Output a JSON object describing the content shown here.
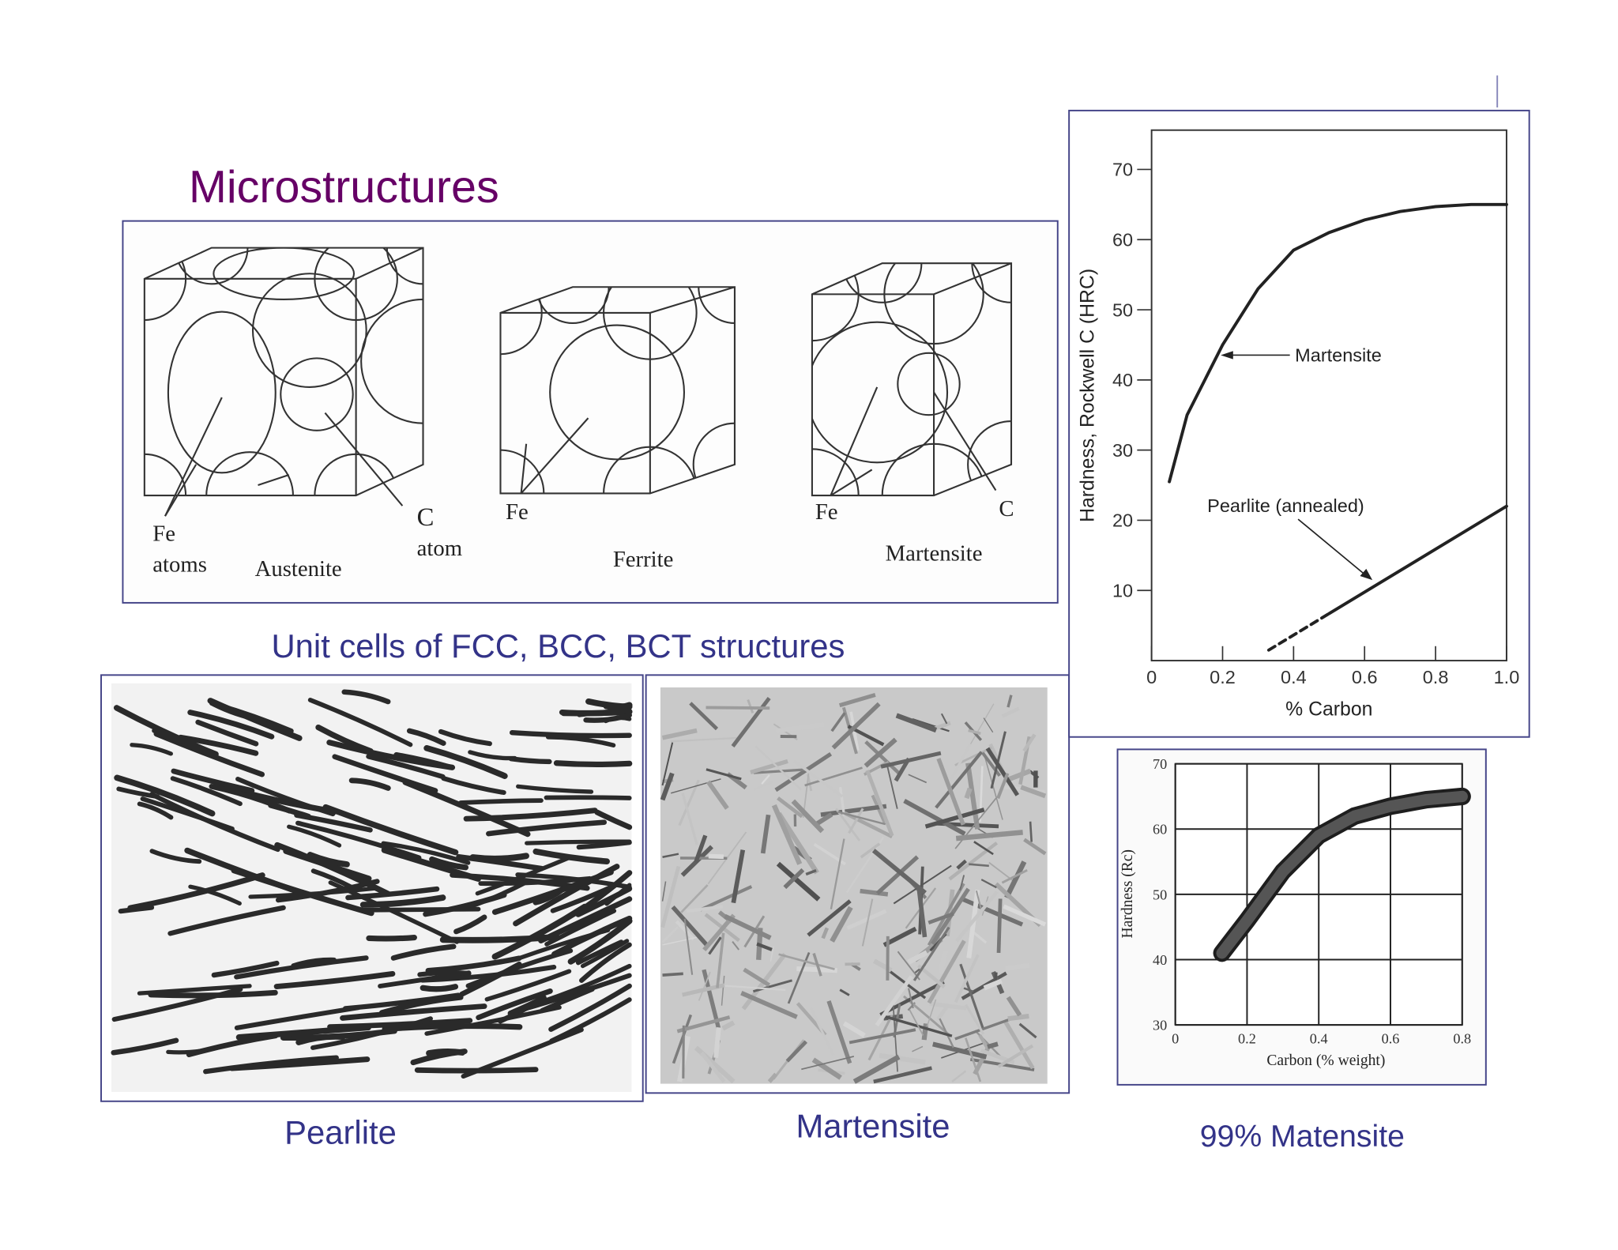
{
  "title": "Microstructures",
  "diagram": {
    "labels": [
      "Fe",
      "atoms",
      "Austenite",
      "C",
      "atom",
      "Fe",
      "Ferrite",
      "Fe",
      "C",
      "Martensite"
    ]
  },
  "captions": [
    "Unit cells of FCC, BCC, BCT structures",
    "Pearlite",
    "Martensite",
    "99% Matensite"
  ],
  "chart_data": [
    {
      "type": "line",
      "x_label": "% Carbon",
      "y_label": "Hardness, Rockwell C (HRC)",
      "xlim": [
        0,
        1
      ],
      "ylim": [
        0,
        75.6
      ],
      "xticks": [
        0,
        0.2,
        0.4,
        0.6,
        0.8,
        {
          "value": 1,
          "label": "1.0"
        }
      ],
      "yticks": [
        10,
        20,
        30,
        40,
        50,
        60,
        70
      ],
      "series": [
        {
          "name": "Martensite",
          "color": "#222222",
          "line_styles": [
            "solid"
          ],
          "x": [
            0.05,
            0.1,
            0.2,
            0.3,
            0.4,
            0.5,
            0.6,
            0.7,
            0.8,
            0.9,
            1.0
          ],
          "values": [
            25.5,
            35,
            45,
            53,
            58.5,
            61,
            62.8,
            64,
            64.7,
            65,
            65
          ]
        },
        {
          "name": "Pearlite (annealed)",
          "color": "#222222",
          "line_styles": [
            "dashed",
            "solid"
          ],
          "x": [
            0.33,
            0.5,
            1.0
          ],
          "values": [
            1.5,
            6.7,
            22
          ]
        }
      ]
    },
    {
      "type": "line",
      "x_label": "Carbon (% weight)",
      "y_label": "Hardness (Rc)",
      "xlim": [
        0,
        0.8
      ],
      "ylim": [
        30,
        70
      ],
      "grid": true,
      "xticks": [
        0,
        0.2,
        0.4,
        0.6,
        0.8
      ],
      "yticks": [
        30,
        40,
        50,
        60,
        70
      ],
      "series": [
        {
          "color": "#555555",
          "line_styles": [
            "band"
          ],
          "x": [
            0.13,
            0.2,
            0.3,
            0.4,
            0.5,
            0.6,
            0.7,
            0.8
          ],
          "values": [
            41,
            46,
            53.5,
            59,
            62,
            63.5,
            64.5,
            65
          ]
        }
      ]
    }
  ]
}
